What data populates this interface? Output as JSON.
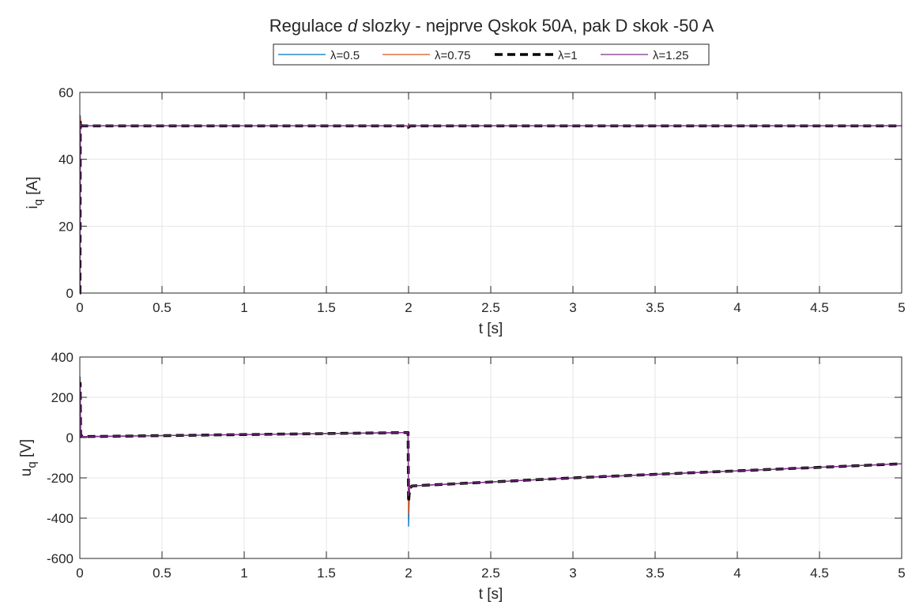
{
  "title": "Regulace d slozky - nejprve Qskok 50A, pak D skok -50 A",
  "title_parts": {
    "pre": "Regulace ",
    "italic": "d",
    "post": " slozky - nejprve Qskok 50A, pak D skok -50 A"
  },
  "colors": {
    "axis": "#262626",
    "grid": "#e6e6e6"
  },
  "legend": {
    "placement": "top-center",
    "entries": [
      {
        "label": "λ=0.5",
        "color": "#0072BD",
        "dash": "solid"
      },
      {
        "label": "λ=0.75",
        "color": "#D95319",
        "dash": "solid"
      },
      {
        "label": "λ=1",
        "color": "#000000",
        "dash": "dashed"
      },
      {
        "label": "λ=1.25",
        "color": "#7E2F8E",
        "dash": "solid"
      }
    ]
  },
  "chart_data": [
    {
      "type": "line",
      "xlabel": "t [s]",
      "ylabel": "i",
      "ylabel_sub": "q",
      "ylabel_unit": " [A]",
      "xlim": [
        0,
        5
      ],
      "ylim": [
        0,
        60
      ],
      "xticks": [
        0,
        0.5,
        1,
        1.5,
        2,
        2.5,
        3,
        3.5,
        4,
        4.5,
        5
      ],
      "yticks": [
        0,
        20,
        40,
        60
      ],
      "xtick_labels": [
        "0",
        "0.5",
        "1",
        "1.5",
        "2",
        "2.5",
        "3",
        "3.5",
        "4",
        "4.5",
        "5"
      ],
      "ytick_labels": [
        "0",
        "20",
        "40",
        "60"
      ],
      "grid": true,
      "series": [
        {
          "name": "λ=0.5",
          "x": [
            0,
            0.001,
            0.003,
            0.006,
            0.012,
            1.99,
            1.995,
            2.0,
            2.005,
            2.01,
            5
          ],
          "y": [
            0,
            0,
            53,
            50.8,
            50,
            50,
            49.2,
            50.7,
            49.7,
            50,
            50
          ]
        },
        {
          "name": "λ=0.75",
          "x": [
            0,
            0.001,
            0.003,
            0.006,
            0.012,
            1.99,
            1.995,
            2.0,
            2.005,
            2.01,
            5
          ],
          "y": [
            0,
            0,
            52.4,
            50.6,
            50,
            50,
            49.4,
            50.5,
            49.8,
            50,
            50
          ]
        },
        {
          "name": "λ=1",
          "x": [
            0,
            0.001,
            0.003,
            0.006,
            0.012,
            1.99,
            2.0,
            2.01,
            5
          ],
          "y": [
            0,
            0,
            51.6,
            50.3,
            50,
            50,
            49.6,
            50,
            50
          ]
        },
        {
          "name": "λ=1.25",
          "x": [
            0,
            0.001,
            0.003,
            0.006,
            0.012,
            1.99,
            1.995,
            2.0,
            2.005,
            2.01,
            5
          ],
          "y": [
            0,
            0,
            51,
            50.2,
            50,
            50,
            49.5,
            50.3,
            49.9,
            50,
            50
          ]
        }
      ]
    },
    {
      "type": "line",
      "xlabel": "t [s]",
      "ylabel": "u",
      "ylabel_sub": "q",
      "ylabel_unit": " [V]",
      "xlim": [
        0,
        5
      ],
      "ylim": [
        -600,
        400
      ],
      "xticks": [
        0,
        0.5,
        1,
        1.5,
        2,
        2.5,
        3,
        3.5,
        4,
        4.5,
        5
      ],
      "yticks": [
        -600,
        -400,
        -200,
        0,
        200,
        400
      ],
      "xtick_labels": [
        "0",
        "0.5",
        "1",
        "1.5",
        "2",
        "2.5",
        "3",
        "3.5",
        "4",
        "4.5",
        "5"
      ],
      "ytick_labels": [
        "-600",
        "-400",
        "-200",
        "0",
        "200",
        "400"
      ],
      "grid": true,
      "series": [
        {
          "name": "λ=0.5",
          "x": [
            0,
            0.002,
            0.005,
            0.02,
            1.99,
            1.997,
            2.0,
            2.006,
            2.02,
            3,
            4,
            5
          ],
          "y": [
            0,
            300,
            20,
            5,
            25,
            25,
            -440,
            -250,
            -240,
            -200,
            -165,
            -130
          ]
        },
        {
          "name": "λ=0.75",
          "x": [
            0,
            0.002,
            0.005,
            0.02,
            1.99,
            1.997,
            2.0,
            2.006,
            2.02,
            3,
            4,
            5
          ],
          "y": [
            0,
            285,
            15,
            5,
            25,
            25,
            -380,
            -255,
            -240,
            -200,
            -165,
            -130
          ]
        },
        {
          "name": "λ=1",
          "x": [
            0,
            0.002,
            0.005,
            0.02,
            1.99,
            1.997,
            2.0,
            2.006,
            2.02,
            3,
            4,
            5
          ],
          "y": [
            0,
            270,
            10,
            5,
            25,
            25,
            -320,
            -255,
            -240,
            -200,
            -165,
            -130
          ]
        },
        {
          "name": "λ=1.25",
          "x": [
            0,
            0.002,
            0.005,
            0.02,
            1.99,
            1.997,
            2.0,
            2.006,
            2.02,
            3,
            4,
            5
          ],
          "y": [
            0,
            255,
            8,
            5,
            25,
            25,
            -290,
            -250,
            -240,
            -200,
            -165,
            -130
          ]
        }
      ]
    }
  ]
}
